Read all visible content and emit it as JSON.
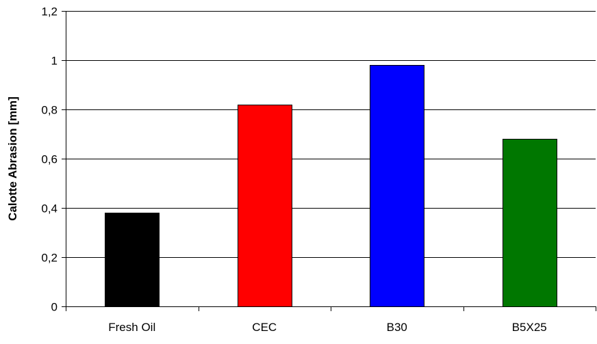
{
  "chart_data": {
    "type": "bar",
    "title": "",
    "xlabel": "",
    "ylabel": "Calotte Abrasion [mm]",
    "categories": [
      "Fresh Oil",
      "CEC",
      "B30",
      "B5X25"
    ],
    "values": [
      0.38,
      0.82,
      0.98,
      0.68
    ],
    "bar_colors": [
      "#000000",
      "#ff0000",
      "#0000ff",
      "#007700"
    ],
    "ylim": [
      0,
      1.2
    ],
    "y_ticks": [
      0,
      0.2,
      0.4,
      0.6,
      0.8,
      1,
      1.2
    ],
    "y_tick_labels": [
      "0",
      "0,2",
      "0,4",
      "0,6",
      "0,8",
      "1",
      "1,2"
    ],
    "grid": true,
    "legend": "none"
  }
}
